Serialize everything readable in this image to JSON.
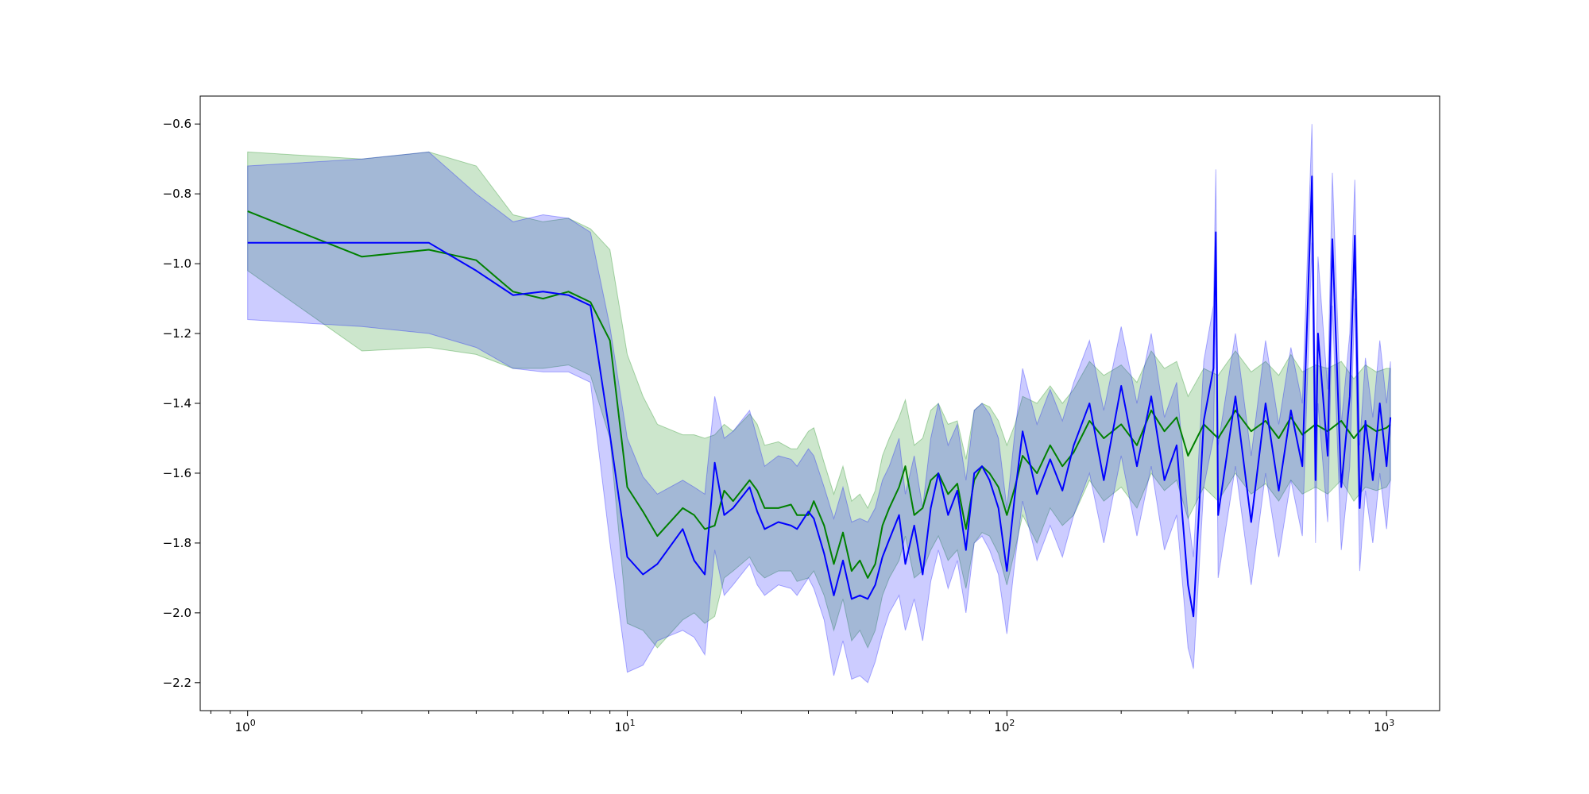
{
  "chart_data": {
    "type": "line",
    "title": "",
    "xlabel": "",
    "ylabel": "",
    "xscale": "log",
    "xlim": [
      0.75,
      1380
    ],
    "ylim": [
      -2.28,
      -0.52
    ],
    "grid": false,
    "legend": "none",
    "x_ticks": [
      {
        "value": 1,
        "base": "10",
        "exp": "0"
      },
      {
        "value": 10,
        "base": "10",
        "exp": "1"
      },
      {
        "value": 100,
        "base": "10",
        "exp": "2"
      },
      {
        "value": 1000,
        "base": "10",
        "exp": "3"
      }
    ],
    "y_ticks": [
      {
        "value": -2.2,
        "label": "−2.2"
      },
      {
        "value": -2.0,
        "label": "−2.0"
      },
      {
        "value": -1.8,
        "label": "−1.8"
      },
      {
        "value": -1.6,
        "label": "−1.6"
      },
      {
        "value": -1.4,
        "label": "−1.4"
      },
      {
        "value": -1.2,
        "label": "−1.2"
      },
      {
        "value": -1.0,
        "label": "−1.0"
      },
      {
        "value": -0.8,
        "label": "−0.8"
      },
      {
        "value": -0.6,
        "label": "−0.6"
      }
    ],
    "series": [
      {
        "color": "#008000",
        "band_color": "#008000",
        "band_opacity": 0.2,
        "points": [
          [
            1,
            -0.85,
            -1.02,
            -0.68
          ],
          [
            2,
            -0.98,
            -1.25,
            -0.7
          ],
          [
            3,
            -0.96,
            -1.24,
            -0.68
          ],
          [
            4,
            -0.99,
            -1.26,
            -0.72
          ],
          [
            5,
            -1.08,
            -1.3,
            -0.86
          ],
          [
            6,
            -1.1,
            -1.3,
            -0.88
          ],
          [
            7,
            -1.08,
            -1.29,
            -0.87
          ],
          [
            8,
            -1.11,
            -1.32,
            -0.9
          ],
          [
            9,
            -1.22,
            -1.5,
            -0.96
          ],
          [
            10,
            -1.64,
            -2.03,
            -1.26
          ],
          [
            11,
            -1.71,
            -2.05,
            -1.38
          ],
          [
            12,
            -1.78,
            -2.1,
            -1.46
          ],
          [
            14,
            -1.7,
            -2.02,
            -1.49
          ],
          [
            15,
            -1.72,
            -2.0,
            -1.49
          ],
          [
            16,
            -1.76,
            -2.03,
            -1.5
          ],
          [
            17,
            -1.75,
            -2.01,
            -1.49
          ],
          [
            18,
            -1.65,
            -1.9,
            -1.46
          ],
          [
            19,
            -1.68,
            -1.88,
            -1.48
          ],
          [
            21,
            -1.62,
            -1.84,
            -1.43
          ],
          [
            22,
            -1.65,
            -1.88,
            -1.46
          ],
          [
            23,
            -1.7,
            -1.9,
            -1.52
          ],
          [
            25,
            -1.7,
            -1.88,
            -1.51
          ],
          [
            27,
            -1.69,
            -1.88,
            -1.53
          ],
          [
            28,
            -1.72,
            -1.91,
            -1.53
          ],
          [
            30,
            -1.72,
            -1.9,
            -1.48
          ],
          [
            31,
            -1.68,
            -1.88,
            -1.47
          ],
          [
            33,
            -1.75,
            -1.95,
            -1.57
          ],
          [
            35,
            -1.86,
            -2.05,
            -1.66
          ],
          [
            37,
            -1.77,
            -1.96,
            -1.58
          ],
          [
            39,
            -1.88,
            -2.08,
            -1.68
          ],
          [
            41,
            -1.85,
            -2.05,
            -1.66
          ],
          [
            43,
            -1.9,
            -2.1,
            -1.7
          ],
          [
            45,
            -1.86,
            -2.05,
            -1.65
          ],
          [
            47,
            -1.75,
            -1.95,
            -1.55
          ],
          [
            49,
            -1.7,
            -1.9,
            -1.5
          ],
          [
            52,
            -1.64,
            -1.85,
            -1.44
          ],
          [
            54,
            -1.58,
            -1.78,
            -1.39
          ],
          [
            57,
            -1.72,
            -1.9,
            -1.52
          ],
          [
            60,
            -1.7,
            -1.88,
            -1.5
          ],
          [
            63,
            -1.62,
            -1.82,
            -1.42
          ],
          [
            66,
            -1.6,
            -1.78,
            -1.4
          ],
          [
            70,
            -1.66,
            -1.85,
            -1.46
          ],
          [
            74,
            -1.63,
            -1.82,
            -1.45
          ],
          [
            78,
            -1.76,
            -1.93,
            -1.56
          ],
          [
            82,
            -1.62,
            -1.8,
            -1.42
          ],
          [
            86,
            -1.58,
            -1.77,
            -1.4
          ],
          [
            90,
            -1.6,
            -1.78,
            -1.41
          ],
          [
            95,
            -1.64,
            -1.83,
            -1.45
          ],
          [
            100,
            -1.72,
            -1.92,
            -1.52
          ],
          [
            105,
            -1.64,
            -1.82,
            -1.46
          ],
          [
            110,
            -1.55,
            -1.72,
            -1.38
          ],
          [
            120,
            -1.6,
            -1.8,
            -1.4
          ],
          [
            130,
            -1.52,
            -1.7,
            -1.35
          ],
          [
            140,
            -1.58,
            -1.75,
            -1.4
          ],
          [
            150,
            -1.54,
            -1.72,
            -1.36
          ],
          [
            165,
            -1.45,
            -1.62,
            -1.28
          ],
          [
            180,
            -1.5,
            -1.68,
            -1.32
          ],
          [
            200,
            -1.46,
            -1.64,
            -1.29
          ],
          [
            220,
            -1.52,
            -1.7,
            -1.34
          ],
          [
            240,
            -1.42,
            -1.6,
            -1.25
          ],
          [
            260,
            -1.48,
            -1.65,
            -1.3
          ],
          [
            280,
            -1.44,
            -1.62,
            -1.28
          ],
          [
            300,
            -1.55,
            -1.73,
            -1.38
          ],
          [
            330,
            -1.46,
            -1.64,
            -1.3
          ],
          [
            360,
            -1.5,
            -1.68,
            -1.32
          ],
          [
            400,
            -1.42,
            -1.6,
            -1.25
          ],
          [
            440,
            -1.48,
            -1.66,
            -1.31
          ],
          [
            480,
            -1.45,
            -1.63,
            -1.28
          ],
          [
            520,
            -1.5,
            -1.68,
            -1.32
          ],
          [
            560,
            -1.44,
            -1.62,
            -1.26
          ],
          [
            600,
            -1.49,
            -1.66,
            -1.31
          ],
          [
            650,
            -1.46,
            -1.64,
            -1.29
          ],
          [
            700,
            -1.48,
            -1.66,
            -1.3
          ],
          [
            760,
            -1.45,
            -1.62,
            -1.28
          ],
          [
            820,
            -1.5,
            -1.68,
            -1.33
          ],
          [
            880,
            -1.46,
            -1.64,
            -1.29
          ],
          [
            940,
            -1.48,
            -1.65,
            -1.31
          ],
          [
            1000,
            -1.47,
            -1.64,
            -1.3
          ],
          [
            1024,
            -1.46,
            -1.62,
            -1.3
          ]
        ]
      },
      {
        "color": "#0000ff",
        "band_color": "#0000ff",
        "band_opacity": 0.2,
        "points": [
          [
            1,
            -0.94,
            -1.16,
            -0.72
          ],
          [
            2,
            -0.94,
            -1.18,
            -0.7
          ],
          [
            3,
            -0.94,
            -1.2,
            -0.68
          ],
          [
            4,
            -1.02,
            -1.24,
            -0.8
          ],
          [
            5,
            -1.09,
            -1.3,
            -0.88
          ],
          [
            6,
            -1.08,
            -1.31,
            -0.86
          ],
          [
            7,
            -1.09,
            -1.31,
            -0.87
          ],
          [
            8,
            -1.12,
            -1.34,
            -0.91
          ],
          [
            9,
            -1.49,
            -1.8,
            -1.18
          ],
          [
            10,
            -1.84,
            -2.17,
            -1.5
          ],
          [
            11,
            -1.89,
            -2.15,
            -1.61
          ],
          [
            12,
            -1.86,
            -2.08,
            -1.66
          ],
          [
            14,
            -1.76,
            -2.05,
            -1.62
          ],
          [
            15,
            -1.85,
            -2.07,
            -1.64
          ],
          [
            16,
            -1.89,
            -2.12,
            -1.66
          ],
          [
            17,
            -1.57,
            -1.82,
            -1.38
          ],
          [
            18,
            -1.72,
            -1.95,
            -1.5
          ],
          [
            19,
            -1.7,
            -1.92,
            -1.48
          ],
          [
            21,
            -1.64,
            -1.86,
            -1.42
          ],
          [
            22,
            -1.71,
            -1.92,
            -1.5
          ],
          [
            23,
            -1.76,
            -1.95,
            -1.58
          ],
          [
            25,
            -1.74,
            -1.92,
            -1.55
          ],
          [
            27,
            -1.75,
            -1.93,
            -1.56
          ],
          [
            28,
            -1.76,
            -1.95,
            -1.58
          ],
          [
            30,
            -1.71,
            -1.9,
            -1.53
          ],
          [
            31,
            -1.73,
            -1.93,
            -1.55
          ],
          [
            33,
            -1.83,
            -2.02,
            -1.64
          ],
          [
            35,
            -1.95,
            -2.18,
            -1.73
          ],
          [
            37,
            -1.85,
            -2.08,
            -1.64
          ],
          [
            39,
            -1.96,
            -2.19,
            -1.74
          ],
          [
            41,
            -1.95,
            -2.18,
            -1.73
          ],
          [
            43,
            -1.96,
            -2.2,
            -1.74
          ],
          [
            45,
            -1.92,
            -2.14,
            -1.7
          ],
          [
            47,
            -1.84,
            -2.06,
            -1.62
          ],
          [
            49,
            -1.79,
            -2.0,
            -1.58
          ],
          [
            52,
            -1.72,
            -1.95,
            -1.5
          ],
          [
            54,
            -1.86,
            -2.05,
            -1.66
          ],
          [
            57,
            -1.75,
            -1.96,
            -1.55
          ],
          [
            60,
            -1.89,
            -2.08,
            -1.7
          ],
          [
            63,
            -1.7,
            -1.91,
            -1.5
          ],
          [
            66,
            -1.6,
            -1.82,
            -1.4
          ],
          [
            70,
            -1.72,
            -1.93,
            -1.52
          ],
          [
            74,
            -1.65,
            -1.85,
            -1.46
          ],
          [
            78,
            -1.82,
            -2.0,
            -1.62
          ],
          [
            82,
            -1.6,
            -1.8,
            -1.42
          ],
          [
            86,
            -1.58,
            -1.78,
            -1.4
          ],
          [
            90,
            -1.62,
            -1.82,
            -1.43
          ],
          [
            95,
            -1.7,
            -1.89,
            -1.5
          ],
          [
            100,
            -1.88,
            -2.06,
            -1.7
          ],
          [
            105,
            -1.66,
            -1.85,
            -1.48
          ],
          [
            110,
            -1.48,
            -1.68,
            -1.3
          ],
          [
            120,
            -1.66,
            -1.85,
            -1.46
          ],
          [
            130,
            -1.56,
            -1.75,
            -1.36
          ],
          [
            140,
            -1.65,
            -1.84,
            -1.45
          ],
          [
            150,
            -1.52,
            -1.72,
            -1.34
          ],
          [
            165,
            -1.4,
            -1.6,
            -1.22
          ],
          [
            180,
            -1.62,
            -1.8,
            -1.42
          ],
          [
            200,
            -1.35,
            -1.55,
            -1.18
          ],
          [
            220,
            -1.58,
            -1.78,
            -1.4
          ],
          [
            240,
            -1.38,
            -1.58,
            -1.2
          ],
          [
            260,
            -1.62,
            -1.82,
            -1.44
          ],
          [
            280,
            -1.52,
            -1.72,
            -1.34
          ],
          [
            300,
            -1.92,
            -2.1,
            -1.72
          ],
          [
            310,
            -2.01,
            -2.16,
            -1.84
          ],
          [
            330,
            -1.45,
            -1.64,
            -1.28
          ],
          [
            350,
            -1.3,
            -1.5,
            -1.12
          ],
          [
            355,
            -0.91,
            -1.1,
            -0.73
          ],
          [
            360,
            -1.72,
            -1.9,
            -1.52
          ],
          [
            400,
            -1.38,
            -1.58,
            -1.2
          ],
          [
            440,
            -1.74,
            -1.92,
            -1.55
          ],
          [
            480,
            -1.4,
            -1.6,
            -1.22
          ],
          [
            520,
            -1.65,
            -1.84,
            -1.46
          ],
          [
            560,
            -1.42,
            -1.62,
            -1.24
          ],
          [
            600,
            -1.58,
            -1.78,
            -1.4
          ],
          [
            636,
            -0.75,
            -0.94,
            -0.6
          ],
          [
            650,
            -1.62,
            -1.8,
            -1.42
          ],
          [
            660,
            -1.2,
            -1.4,
            -0.98
          ],
          [
            700,
            -1.55,
            -1.74,
            -1.36
          ],
          [
            720,
            -0.93,
            -1.12,
            -0.74
          ],
          [
            760,
            -1.64,
            -1.82,
            -1.46
          ],
          [
            800,
            -1.38,
            -1.58,
            -1.2
          ],
          [
            825,
            -0.92,
            -1.1,
            -0.76
          ],
          [
            850,
            -1.7,
            -1.88,
            -1.52
          ],
          [
            880,
            -1.45,
            -1.65,
            -1.27
          ],
          [
            920,
            -1.62,
            -1.8,
            -1.44
          ],
          [
            960,
            -1.4,
            -1.6,
            -1.22
          ],
          [
            1000,
            -1.58,
            -1.76,
            -1.4
          ],
          [
            1024,
            -1.44,
            -1.62,
            -1.28
          ]
        ]
      }
    ]
  }
}
